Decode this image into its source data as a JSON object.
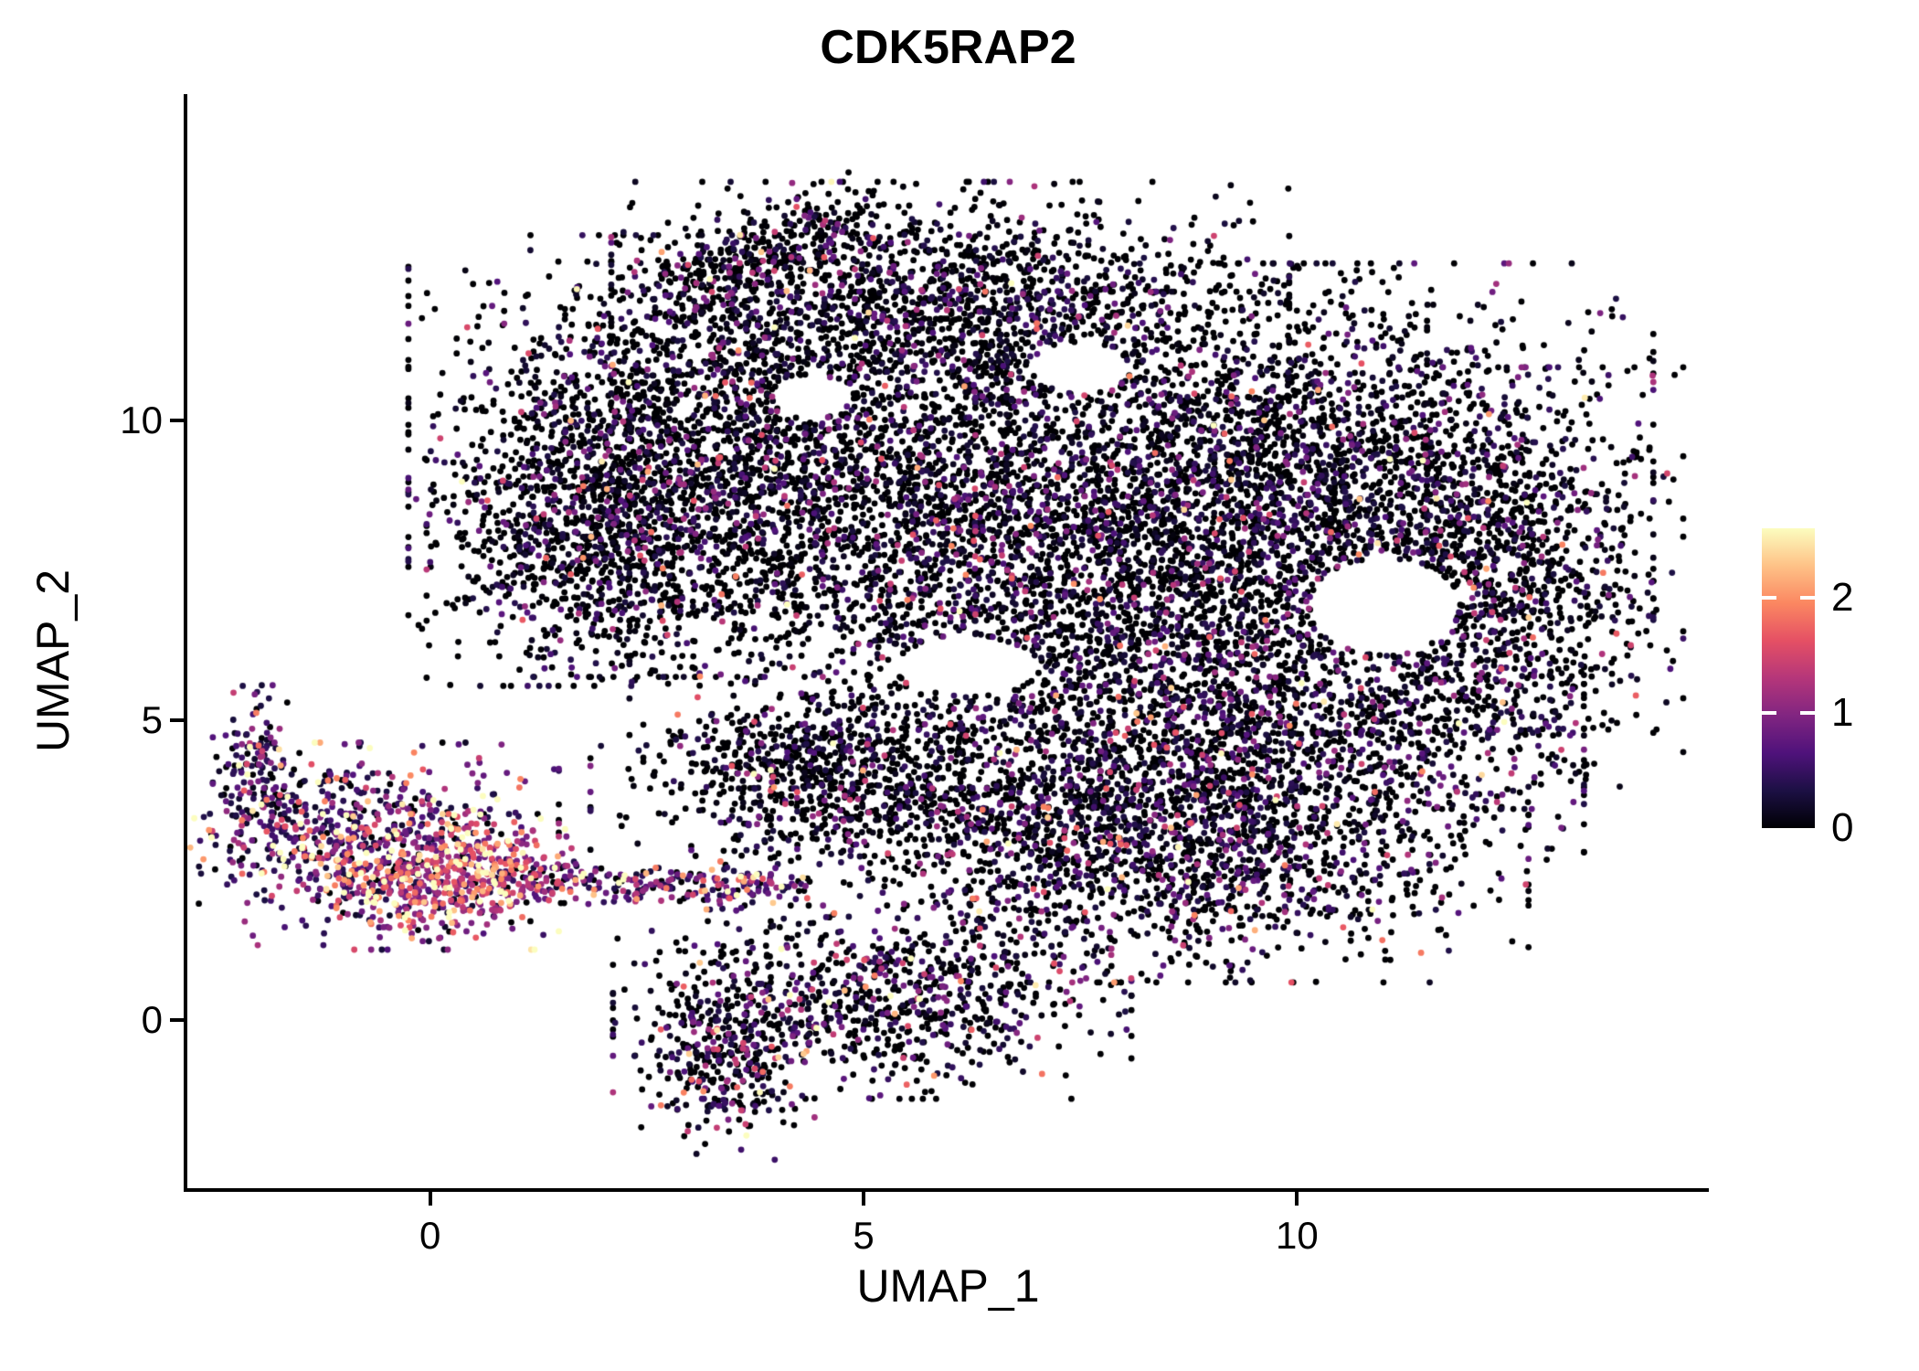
{
  "figure": {
    "background": "#ffffff"
  },
  "chart_data": {
    "type": "scatter",
    "title": "CDK5RAP2",
    "xlabel": "UMAP_1",
    "ylabel": "UMAP_2",
    "xlim": [
      -2.8,
      14.75
    ],
    "ylim": [
      -2.8,
      15.4
    ],
    "x_ticks": [
      0,
      5,
      10
    ],
    "y_ticks": [
      0,
      5,
      10
    ],
    "grid": false,
    "legend_position": "right",
    "point_radius_px": 3.4,
    "seed": 42,
    "colorbar": {
      "label_values": [
        0,
        1,
        2
      ],
      "limits": [
        0,
        2.6
      ],
      "colormap": "magma",
      "colors": [
        "#000004",
        "#1c1044",
        "#4f127b",
        "#812581",
        "#b5367a",
        "#e55064",
        "#fb8761",
        "#fec287",
        "#fcfdbf"
      ]
    },
    "clusters": [
      {
        "name": "main-upper-left",
        "type": "gauss",
        "cx": 3.2,
        "cy": 9.4,
        "sx": 1.5,
        "sy": 1.6,
        "n": 2400,
        "p0": 0.62,
        "scale": 0.45,
        "base": 0
      },
      {
        "name": "left-bulge",
        "type": "gauss",
        "cx": 1.8,
        "cy": 8.1,
        "sx": 0.8,
        "sy": 1.1,
        "n": 700,
        "p0": 0.6,
        "scale": 0.45,
        "base": 0
      },
      {
        "name": "main-top-ridge",
        "type": "gauss",
        "cx": 6.0,
        "cy": 11.9,
        "sx": 1.7,
        "sy": 0.9,
        "n": 1500,
        "p0": 0.66,
        "scale": 0.42,
        "base": 0
      },
      {
        "name": "top-neck",
        "type": "band",
        "x0": 3.0,
        "y0": 12.1,
        "x1": 4.8,
        "y1": 13.5,
        "jx": 0.4,
        "jy": 0.3,
        "n": 320,
        "p0": 0.6,
        "scale": 0.45,
        "base": 0
      },
      {
        "name": "main-center",
        "type": "gauss",
        "cx": 6.9,
        "cy": 8.0,
        "sx": 2.0,
        "sy": 1.8,
        "n": 3200,
        "p0": 0.6,
        "scale": 0.45,
        "base": 0
      },
      {
        "name": "main-right",
        "type": "gauss",
        "cx": 10.2,
        "cy": 8.7,
        "sx": 1.7,
        "sy": 1.7,
        "n": 2600,
        "p0": 0.6,
        "scale": 0.45,
        "base": 0
      },
      {
        "name": "right-lobe",
        "type": "gauss",
        "cx": 12.5,
        "cy": 7.2,
        "sx": 0.85,
        "sy": 1.6,
        "n": 900,
        "p0": 0.6,
        "scale": 0.45,
        "base": 0
      },
      {
        "name": "right-lower",
        "type": "gauss",
        "cx": 9.4,
        "cy": 4.6,
        "sx": 1.7,
        "sy": 1.2,
        "n": 1700,
        "p0": 0.55,
        "scale": 0.5,
        "base": 0
      },
      {
        "name": "lower-right-band",
        "type": "gauss",
        "cx": 8.3,
        "cy": 2.7,
        "sx": 1.9,
        "sy": 0.9,
        "n": 1400,
        "p0": 0.55,
        "scale": 0.5,
        "base": 0
      },
      {
        "name": "mid-band",
        "type": "gauss",
        "cx": 5.3,
        "cy": 3.7,
        "sx": 1.5,
        "sy": 0.6,
        "n": 600,
        "p0": 0.6,
        "scale": 0.45,
        "base": 0
      },
      {
        "name": "mid-knot",
        "type": "gauss",
        "cx": 4.3,
        "cy": 4.5,
        "sx": 0.8,
        "sy": 0.5,
        "n": 350,
        "p0": 0.6,
        "scale": 0.45,
        "base": 0
      },
      {
        "name": "bright-left-core",
        "type": "gauss",
        "cx": 0.3,
        "cy": 2.4,
        "sx": 0.6,
        "sy": 0.45,
        "n": 420,
        "p0": 0.04,
        "scale": 0.8,
        "base": 0.8
      },
      {
        "name": "bright-left-main",
        "type": "gauss",
        "cx": -0.7,
        "cy": 2.9,
        "sx": 0.95,
        "sy": 0.75,
        "n": 750,
        "p0": 0.12,
        "scale": 0.9,
        "base": 0.15
      },
      {
        "name": "left-arm",
        "type": "gauss",
        "cx": -2.0,
        "cy": 4.2,
        "sx": 0.22,
        "sy": 0.6,
        "n": 140,
        "p0": 0.3,
        "scale": 0.7,
        "base": 0.1
      },
      {
        "name": "bridge-trail",
        "type": "band",
        "x0": 1.0,
        "y0": 2.35,
        "x1": 4.1,
        "y1": 2.2,
        "jx": 0.3,
        "jy": 0.17,
        "n": 260,
        "p0": 0.18,
        "scale": 0.8,
        "base": 0.25
      },
      {
        "name": "bottom-cluster",
        "type": "gauss",
        "cx": 5.1,
        "cy": 0.3,
        "sx": 1.3,
        "sy": 0.7,
        "n": 800,
        "p0": 0.5,
        "scale": 0.55,
        "base": 0
      },
      {
        "name": "bottom-tail",
        "type": "gauss",
        "cx": 3.4,
        "cy": -0.6,
        "sx": 0.45,
        "sy": 0.75,
        "n": 320,
        "p0": 0.45,
        "scale": 0.6,
        "base": 0
      }
    ],
    "exclusion_zones": [
      {
        "cx": 11.0,
        "cy": 6.9,
        "rx": 0.85,
        "ry": 0.8
      },
      {
        "cx": 6.2,
        "cy": 5.9,
        "rx": 0.8,
        "ry": 0.5
      },
      {
        "cx": 7.5,
        "cy": 10.9,
        "rx": 0.55,
        "ry": 0.4
      },
      {
        "cx": 4.4,
        "cy": 10.4,
        "rx": 0.45,
        "ry": 0.35
      }
    ]
  }
}
